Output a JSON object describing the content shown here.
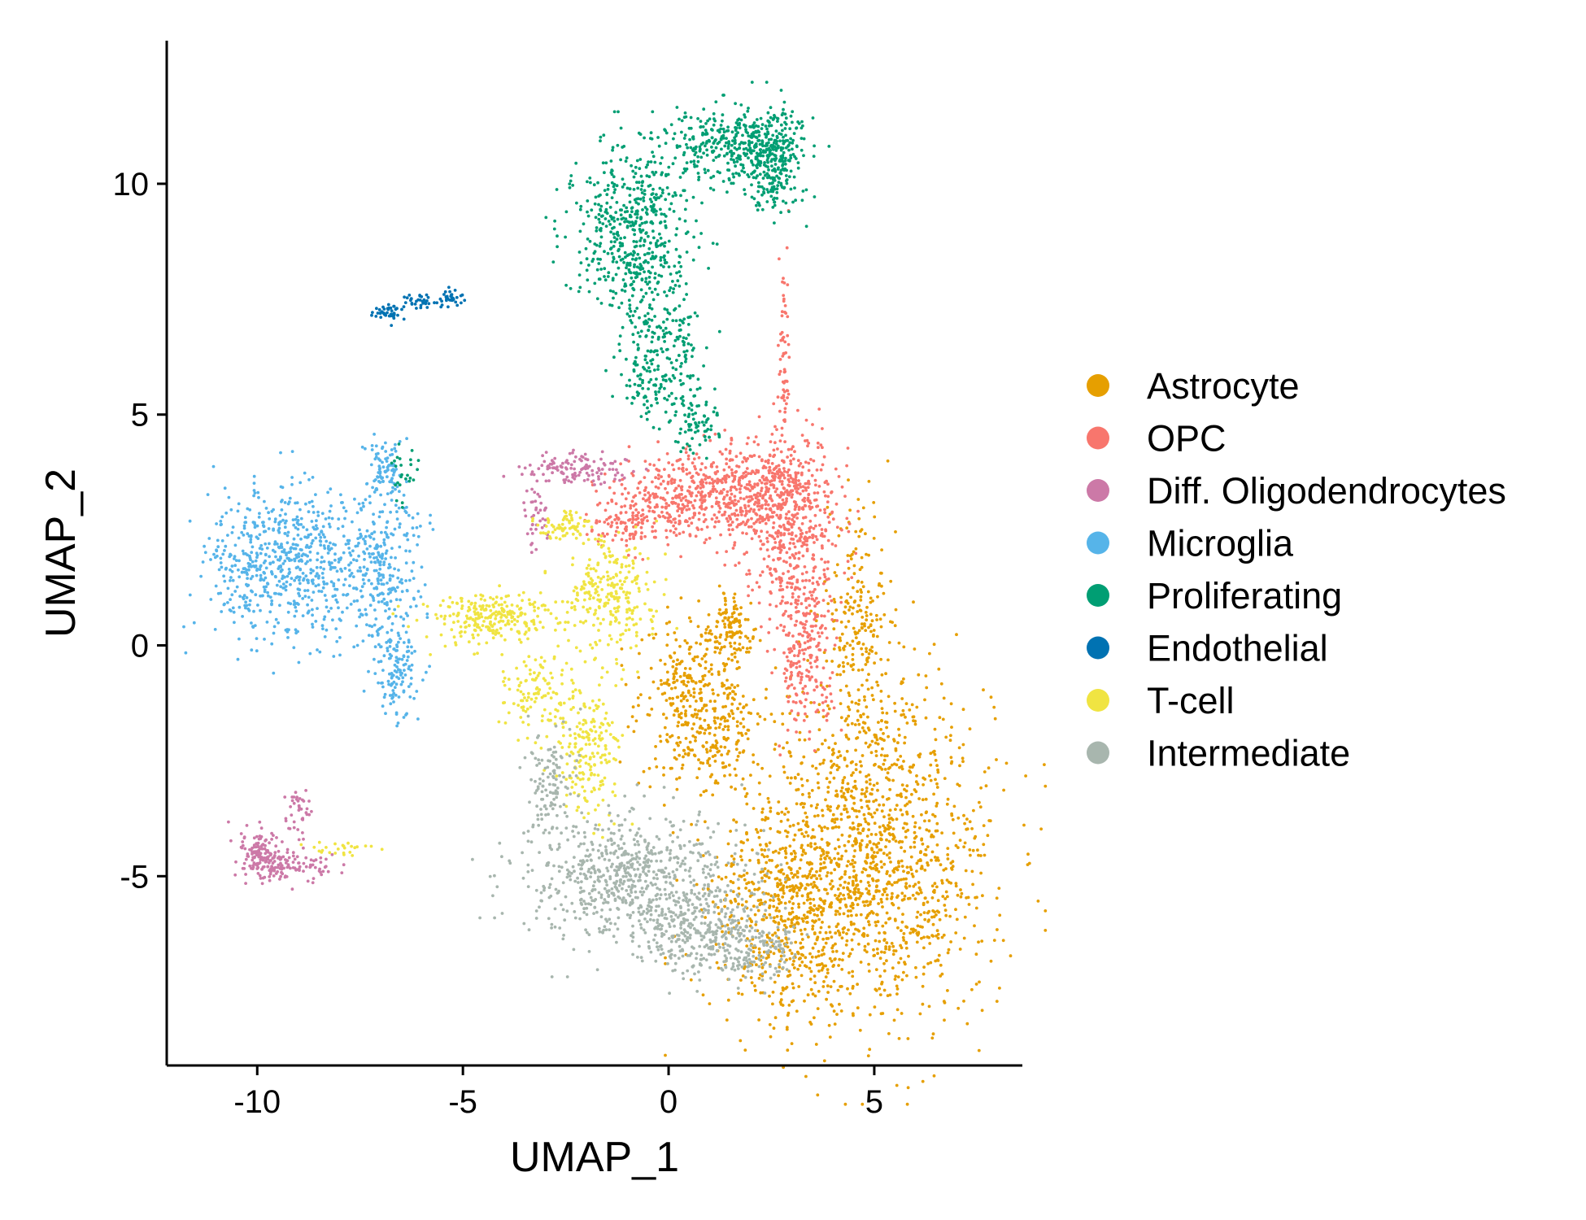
{
  "chart_data": {
    "type": "scatter",
    "title": "",
    "xlabel": "UMAP_1",
    "ylabel": "UMAP_2",
    "xlim": [
      -12.2,
      8.6
    ],
    "ylim": [
      -9.1,
      13.1
    ],
    "x_ticks": [
      -10,
      -5,
      0,
      5
    ],
    "y_ticks": [
      -5,
      0,
      5,
      10
    ],
    "x_tick_labels": [
      "-10",
      "-5",
      "0",
      "5"
    ],
    "y_tick_labels": [
      "-5",
      "0",
      "5",
      "10"
    ],
    "grid": false,
    "legend_position": "right",
    "series": [
      {
        "name": "Astrocyte",
        "color": "#E69F00",
        "regions": [
          {
            "cx": 5.0,
            "cy": -4.5,
            "rx": 2.6,
            "ry": 3.4,
            "n": 1400
          },
          {
            "cx": 2.8,
            "cy": -5.8,
            "rx": 1.8,
            "ry": 2.0,
            "n": 500
          },
          {
            "cx": 0.9,
            "cy": -1.8,
            "rx": 1.3,
            "ry": 1.3,
            "n": 300
          },
          {
            "cx": 1.6,
            "cy": 0.3,
            "rx": 0.5,
            "ry": 0.7,
            "n": 120
          },
          {
            "cx": 4.6,
            "cy": 0.5,
            "rx": 0.7,
            "ry": 2.3,
            "n": 220
          },
          {
            "cx": 0.3,
            "cy": -0.5,
            "rx": 0.9,
            "ry": 1.3,
            "n": 140
          }
        ]
      },
      {
        "name": "OPC",
        "color": "#F8766D",
        "regions": [
          {
            "cx": 1.2,
            "cy": 3.3,
            "rx": 2.0,
            "ry": 0.9,
            "n": 650
          },
          {
            "cx": 3.0,
            "cy": 2.8,
            "rx": 1.1,
            "ry": 1.6,
            "n": 450
          },
          {
            "cx": 3.3,
            "cy": 0.0,
            "rx": 0.7,
            "ry": 1.6,
            "n": 260
          },
          {
            "cx": -1.0,
            "cy": 2.7,
            "rx": 0.9,
            "ry": 0.5,
            "n": 120
          },
          {
            "cx": 2.8,
            "cy": 6.2,
            "rx": 0.14,
            "ry": 2.2,
            "n": 70
          }
        ]
      },
      {
        "name": "Diff. Oligodendrocytes",
        "color": "#CC79A7",
        "regions": [
          {
            "cx": -2.3,
            "cy": 3.8,
            "rx": 1.1,
            "ry": 0.3,
            "n": 120
          },
          {
            "cx": -3.2,
            "cy": 2.8,
            "rx": 0.3,
            "ry": 0.6,
            "n": 40
          },
          {
            "cx": -9.9,
            "cy": -4.5,
            "rx": 0.5,
            "ry": 0.5,
            "n": 140
          },
          {
            "cx": -9.1,
            "cy": -4.8,
            "rx": 0.9,
            "ry": 0.3,
            "n": 90
          },
          {
            "cx": -9.0,
            "cy": -3.7,
            "rx": 0.3,
            "ry": 0.5,
            "n": 40
          }
        ]
      },
      {
        "name": "Microglia",
        "color": "#56B4E9",
        "regions": [
          {
            "cx": -9.3,
            "cy": 1.8,
            "rx": 1.7,
            "ry": 1.5,
            "n": 650
          },
          {
            "cx": -7.0,
            "cy": 1.6,
            "rx": 0.9,
            "ry": 1.8,
            "n": 280
          },
          {
            "cx": -6.6,
            "cy": -0.6,
            "rx": 0.5,
            "ry": 1.0,
            "n": 120
          },
          {
            "cx": -6.9,
            "cy": 3.8,
            "rx": 0.4,
            "ry": 0.6,
            "n": 80
          }
        ]
      },
      {
        "name": "Proliferating",
        "color": "#009E73",
        "regions": [
          {
            "cx": -0.9,
            "cy": 9.0,
            "rx": 1.3,
            "ry": 1.6,
            "n": 520
          },
          {
            "cx": 1.5,
            "cy": 10.8,
            "rx": 1.5,
            "ry": 0.7,
            "n": 340
          },
          {
            "cx": 2.5,
            "cy": 10.6,
            "rx": 0.7,
            "ry": 1.0,
            "n": 260
          },
          {
            "cx": -0.2,
            "cy": 6.3,
            "rx": 0.9,
            "ry": 1.3,
            "n": 260
          },
          {
            "cx": 0.6,
            "cy": 4.8,
            "rx": 0.6,
            "ry": 0.6,
            "n": 70
          },
          {
            "cx": -6.4,
            "cy": 3.7,
            "rx": 0.3,
            "ry": 0.5,
            "n": 25
          }
        ]
      },
      {
        "name": "Endothelial",
        "color": "#0072B2",
        "regions": [
          {
            "cx": -6.8,
            "cy": 7.2,
            "rx": 0.4,
            "ry": 0.17,
            "n": 45
          },
          {
            "cx": -6.0,
            "cy": 7.45,
            "rx": 0.4,
            "ry": 0.12,
            "n": 35
          },
          {
            "cx": -5.3,
            "cy": 7.55,
            "rx": 0.25,
            "ry": 0.15,
            "n": 30
          }
        ]
      },
      {
        "name": "T-cell",
        "color": "#F0E442",
        "regions": [
          {
            "cx": -4.3,
            "cy": 0.6,
            "rx": 1.5,
            "ry": 0.5,
            "n": 260
          },
          {
            "cx": -1.4,
            "cy": 1.0,
            "rx": 1.0,
            "ry": 1.2,
            "n": 260
          },
          {
            "cx": -2.0,
            "cy": -2.2,
            "rx": 0.7,
            "ry": 1.4,
            "n": 200
          },
          {
            "cx": -3.3,
            "cy": -1.0,
            "rx": 0.8,
            "ry": 0.8,
            "n": 110
          },
          {
            "cx": -2.5,
            "cy": 2.6,
            "rx": 0.7,
            "ry": 0.3,
            "n": 70
          },
          {
            "cx": -8.0,
            "cy": -4.4,
            "rx": 0.8,
            "ry": 0.15,
            "n": 25
          }
        ]
      },
      {
        "name": "Intermediate",
        "color": "#A8B6AE",
        "regions": [
          {
            "cx": -1.0,
            "cy": -5.1,
            "rx": 2.4,
            "ry": 1.3,
            "n": 700
          },
          {
            "cx": 0.8,
            "cy": -6.2,
            "rx": 1.4,
            "ry": 0.9,
            "n": 300
          },
          {
            "cx": -2.9,
            "cy": -3.0,
            "rx": 0.6,
            "ry": 1.2,
            "n": 120
          },
          {
            "cx": 2.2,
            "cy": -6.6,
            "rx": 0.9,
            "ry": 0.6,
            "n": 110
          }
        ]
      }
    ]
  }
}
